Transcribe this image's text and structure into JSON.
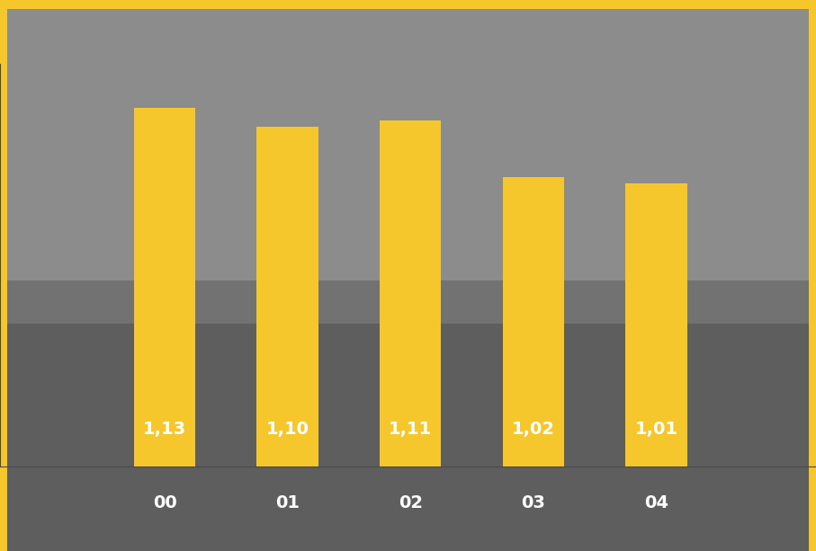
{
  "chart_data": {
    "type": "bar",
    "categories": [
      "00",
      "01",
      "02",
      "03",
      "04"
    ],
    "values": [
      1.13,
      1.1,
      1.11,
      1.02,
      1.01
    ],
    "value_labels": [
      "1,13",
      "1,10",
      "1,11",
      "1,02",
      "1,01"
    ],
    "color": "#f5c72c",
    "ylim": [
      0.56,
      1.2
    ],
    "grid": false,
    "data_labels": true,
    "tick_labels": "x"
  }
}
